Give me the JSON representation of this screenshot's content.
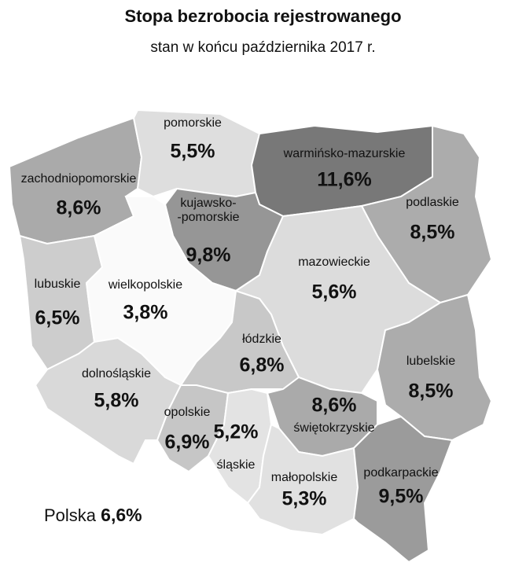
{
  "chart_data": {
    "type": "map",
    "title": "Stopa bezrobocia rejestrowanego",
    "subtitle": "stan w końcu października 2017 r.",
    "categories": [
      "zachodniopomorskie",
      "pomorskie",
      "warmińsko-mazurskie",
      "podlaskie",
      "kujawsko-\n-pomorskie",
      "lubuskie",
      "wielkopolskie",
      "mazowieckie",
      "łódzkie",
      "lubelskie",
      "dolnośląskie",
      "opolskie",
      "śląskie",
      "świętokrzyskie",
      "małopolskie",
      "podkarpackie"
    ],
    "values": [
      8.6,
      5.5,
      11.6,
      8.5,
      9.8,
      6.5,
      3.8,
      5.6,
      6.8,
      8.5,
      5.8,
      6.9,
      5.2,
      8.6,
      5.3,
      9.5
    ],
    "value_labels": [
      "8,6%",
      "5,5%",
      "11,6%",
      "8,5%",
      "9,8%",
      "6,5%",
      "3,8%",
      "5,6%",
      "6,8%",
      "8,5%",
      "5,8%",
      "6,9%",
      "5,2%",
      "8,6%",
      "5,3%",
      "9,5%"
    ],
    "total_name": "Polska",
    "total": 6.6,
    "total_label": "6,6%"
  }
}
